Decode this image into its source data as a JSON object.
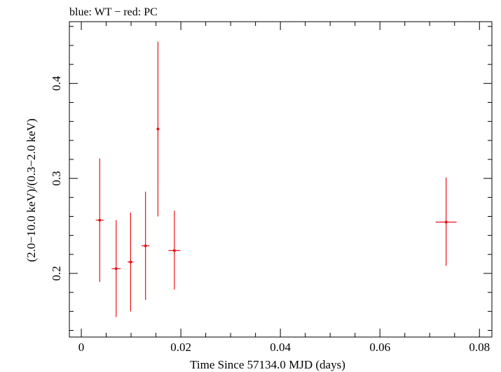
{
  "chart_data": {
    "type": "scatter",
    "title": "blue: WT − red: PC",
    "xlabel": "Time Since 57134.0 MJD (days)",
    "ylabel": "(2.0−10.0 keV)/(0.3−2.0 keV)",
    "xlim": [
      -0.0024,
      0.0825
    ],
    "ylim": [
      0.133,
      0.465
    ],
    "x_ticks": [
      0,
      0.02,
      0.04,
      0.06,
      0.08
    ],
    "x_tick_labels": [
      "0",
      "0.02",
      "0.04",
      "0.06",
      "0.08"
    ],
    "y_ticks": [
      0.2,
      0.3,
      0.4
    ],
    "y_tick_labels": [
      "0.2",
      "0.3",
      "0.4"
    ],
    "series": [
      {
        "name": "PC",
        "color": "#e8131a",
        "points": [
          {
            "x": 0.0037,
            "y": 0.256,
            "xerr": 0.0008,
            "ylo": 0.191,
            "yhi": 0.321
          },
          {
            "x": 0.007,
            "y": 0.205,
            "xerr": 0.0009,
            "ylo": 0.154,
            "yhi": 0.256
          },
          {
            "x": 0.0099,
            "y": 0.212,
            "xerr": 0.0006,
            "ylo": 0.16,
            "yhi": 0.264
          },
          {
            "x": 0.0129,
            "y": 0.229,
            "xerr": 0.0008,
            "ylo": 0.172,
            "yhi": 0.286
          },
          {
            "x": 0.0154,
            "y": 0.352,
            "xerr": 0.0002,
            "ylo": 0.26,
            "yhi": 0.444
          },
          {
            "x": 0.0187,
            "y": 0.224,
            "xerr": 0.0012,
            "ylo": 0.183,
            "yhi": 0.266
          },
          {
            "x": 0.0733,
            "y": 0.254,
            "xerr": 0.0021,
            "ylo": 0.208,
            "yhi": 0.301
          }
        ]
      },
      {
        "name": "WT",
        "color": "#1f3fd6",
        "points": []
      }
    ]
  }
}
